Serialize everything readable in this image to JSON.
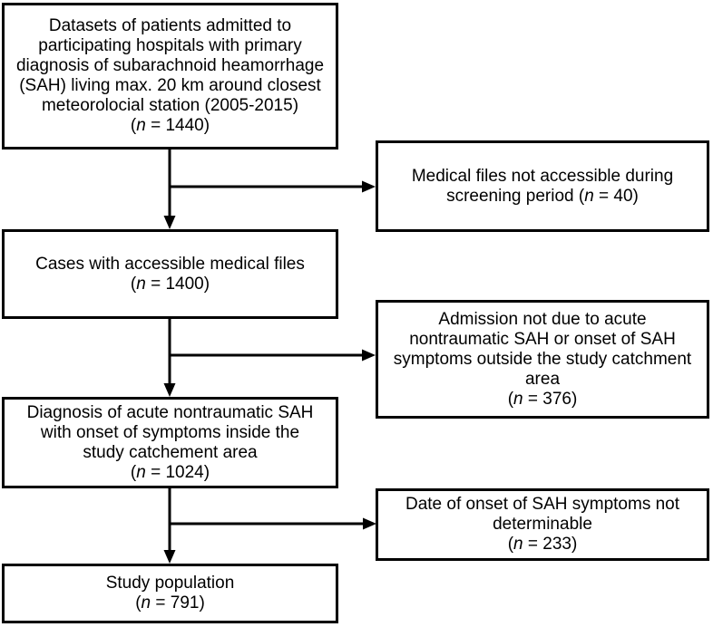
{
  "figure": {
    "type": "flowchart",
    "colors": {
      "background": "#ffffff",
      "line": "#000000",
      "text": "#000000"
    },
    "boxes": {
      "datasets": {
        "lines": [
          "Datasets of patients admitted to",
          "participating hospitals with primary",
          "diagnosis of subarachnoid heamorrhage",
          "(SAH) living max. 20 km around closest",
          "meteorolocial station (2005-2015)",
          "(n = 1440)"
        ],
        "n_value": "1440"
      },
      "files_not_accessible": {
        "lines": [
          "Medical files not accessible during",
          "screening period (n = 40)"
        ],
        "n_value": "40"
      },
      "accessible_files": {
        "lines": [
          "Cases with accessible medical files",
          "(n = 1400)"
        ],
        "n_value": "1400"
      },
      "admission_excluded": {
        "lines": [
          "Admission not due to acute",
          "nontraumatic SAH or onset of SAH",
          "symptoms outside the study catchment",
          "area",
          "(n = 376)"
        ],
        "n_value": "376"
      },
      "diagnosis": {
        "lines": [
          "Diagnosis of acute nontraumatic SAH",
          "with onset of symptoms inside the",
          "study catchement area",
          "(n = 1024)"
        ],
        "n_value": "1024"
      },
      "onset_not_determinable": {
        "lines": [
          "Date of onset of SAH symptoms not",
          "determinable",
          "(n = 233)"
        ],
        "n_value": "233"
      },
      "study_population": {
        "lines": [
          "Study population",
          "(n = 791)"
        ],
        "n_value": "791"
      }
    }
  }
}
